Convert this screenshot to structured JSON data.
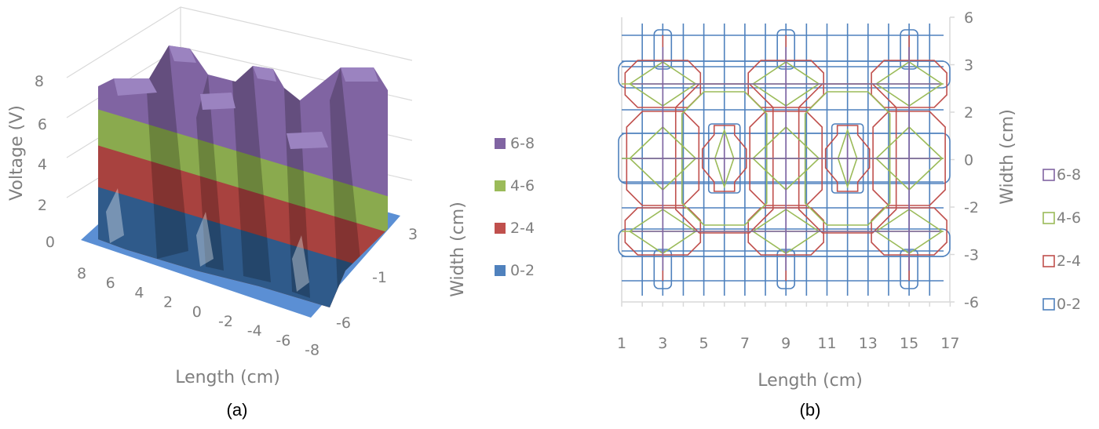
{
  "colors": {
    "band_6_8": "#8064a2",
    "band_4_6": "#9bbb59",
    "band_2_4": "#c0504d",
    "band_0_2": "#4f81bd",
    "axis_text": "#7f7f7f",
    "gridline": "#d9d9d9"
  },
  "chart_data": [
    {
      "type": "surface",
      "caption": "(a)",
      "xlabel": "Length (cm)",
      "x_ticks": [
        "8",
        "6",
        "4",
        "2",
        "0",
        "-2",
        "-4",
        "-6",
        "-8"
      ],
      "ylabel": "Width (cm)",
      "y_ticks": [
        "3",
        "-1",
        "-6"
      ],
      "zlabel": "Voltage (V)",
      "z_ticks": [
        "0",
        "2",
        "4",
        "6",
        "8"
      ],
      "zlim": [
        0,
        8
      ],
      "legend": [
        "6-8",
        "4-6",
        "2-4",
        "0-2"
      ],
      "legend_position": "right"
    },
    {
      "type": "contour",
      "caption": "(b)",
      "xlabel": "Length (cm)",
      "x_ticks": [
        "1",
        "3",
        "5",
        "7",
        "9",
        "11",
        "13",
        "15",
        "17"
      ],
      "xlim": [
        1,
        17
      ],
      "ylabel": "Width (cm)",
      "y_ticks": [
        "6",
        "3",
        "2",
        "0",
        "-2",
        "-3",
        "-6"
      ],
      "legend": [
        "6-8",
        "4-6",
        "2-4",
        "0-2"
      ],
      "legend_position": "right",
      "peaks_x": [
        3,
        9,
        15
      ],
      "minor_peaks_x": [
        6,
        12
      ]
    }
  ]
}
